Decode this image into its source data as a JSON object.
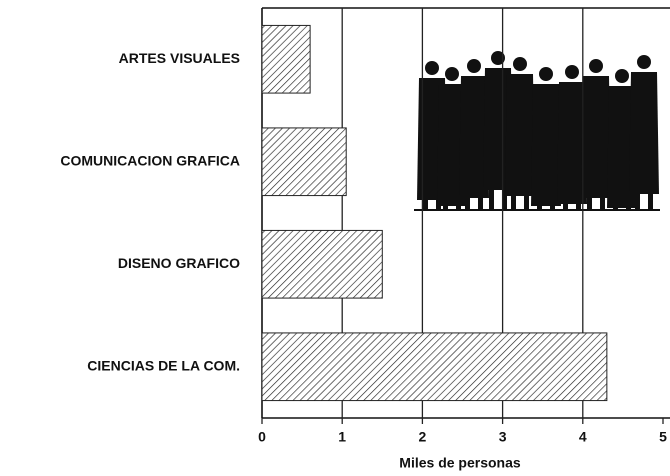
{
  "chart_data": {
    "type": "bar",
    "categories": [
      "ARTES VISUALES",
      "COMUNICACION GRAFICA",
      "DISENO GRAFICO",
      "CIENCIAS DE LA COM."
    ],
    "values": [
      0.6,
      1.05,
      1.5,
      4.3
    ],
    "color": "#222222",
    "xlim": [
      0,
      5
    ],
    "xticks": [
      0,
      1,
      2,
      3,
      4,
      5
    ],
    "xlabel": "Miles de personas",
    "grid": true
  }
}
